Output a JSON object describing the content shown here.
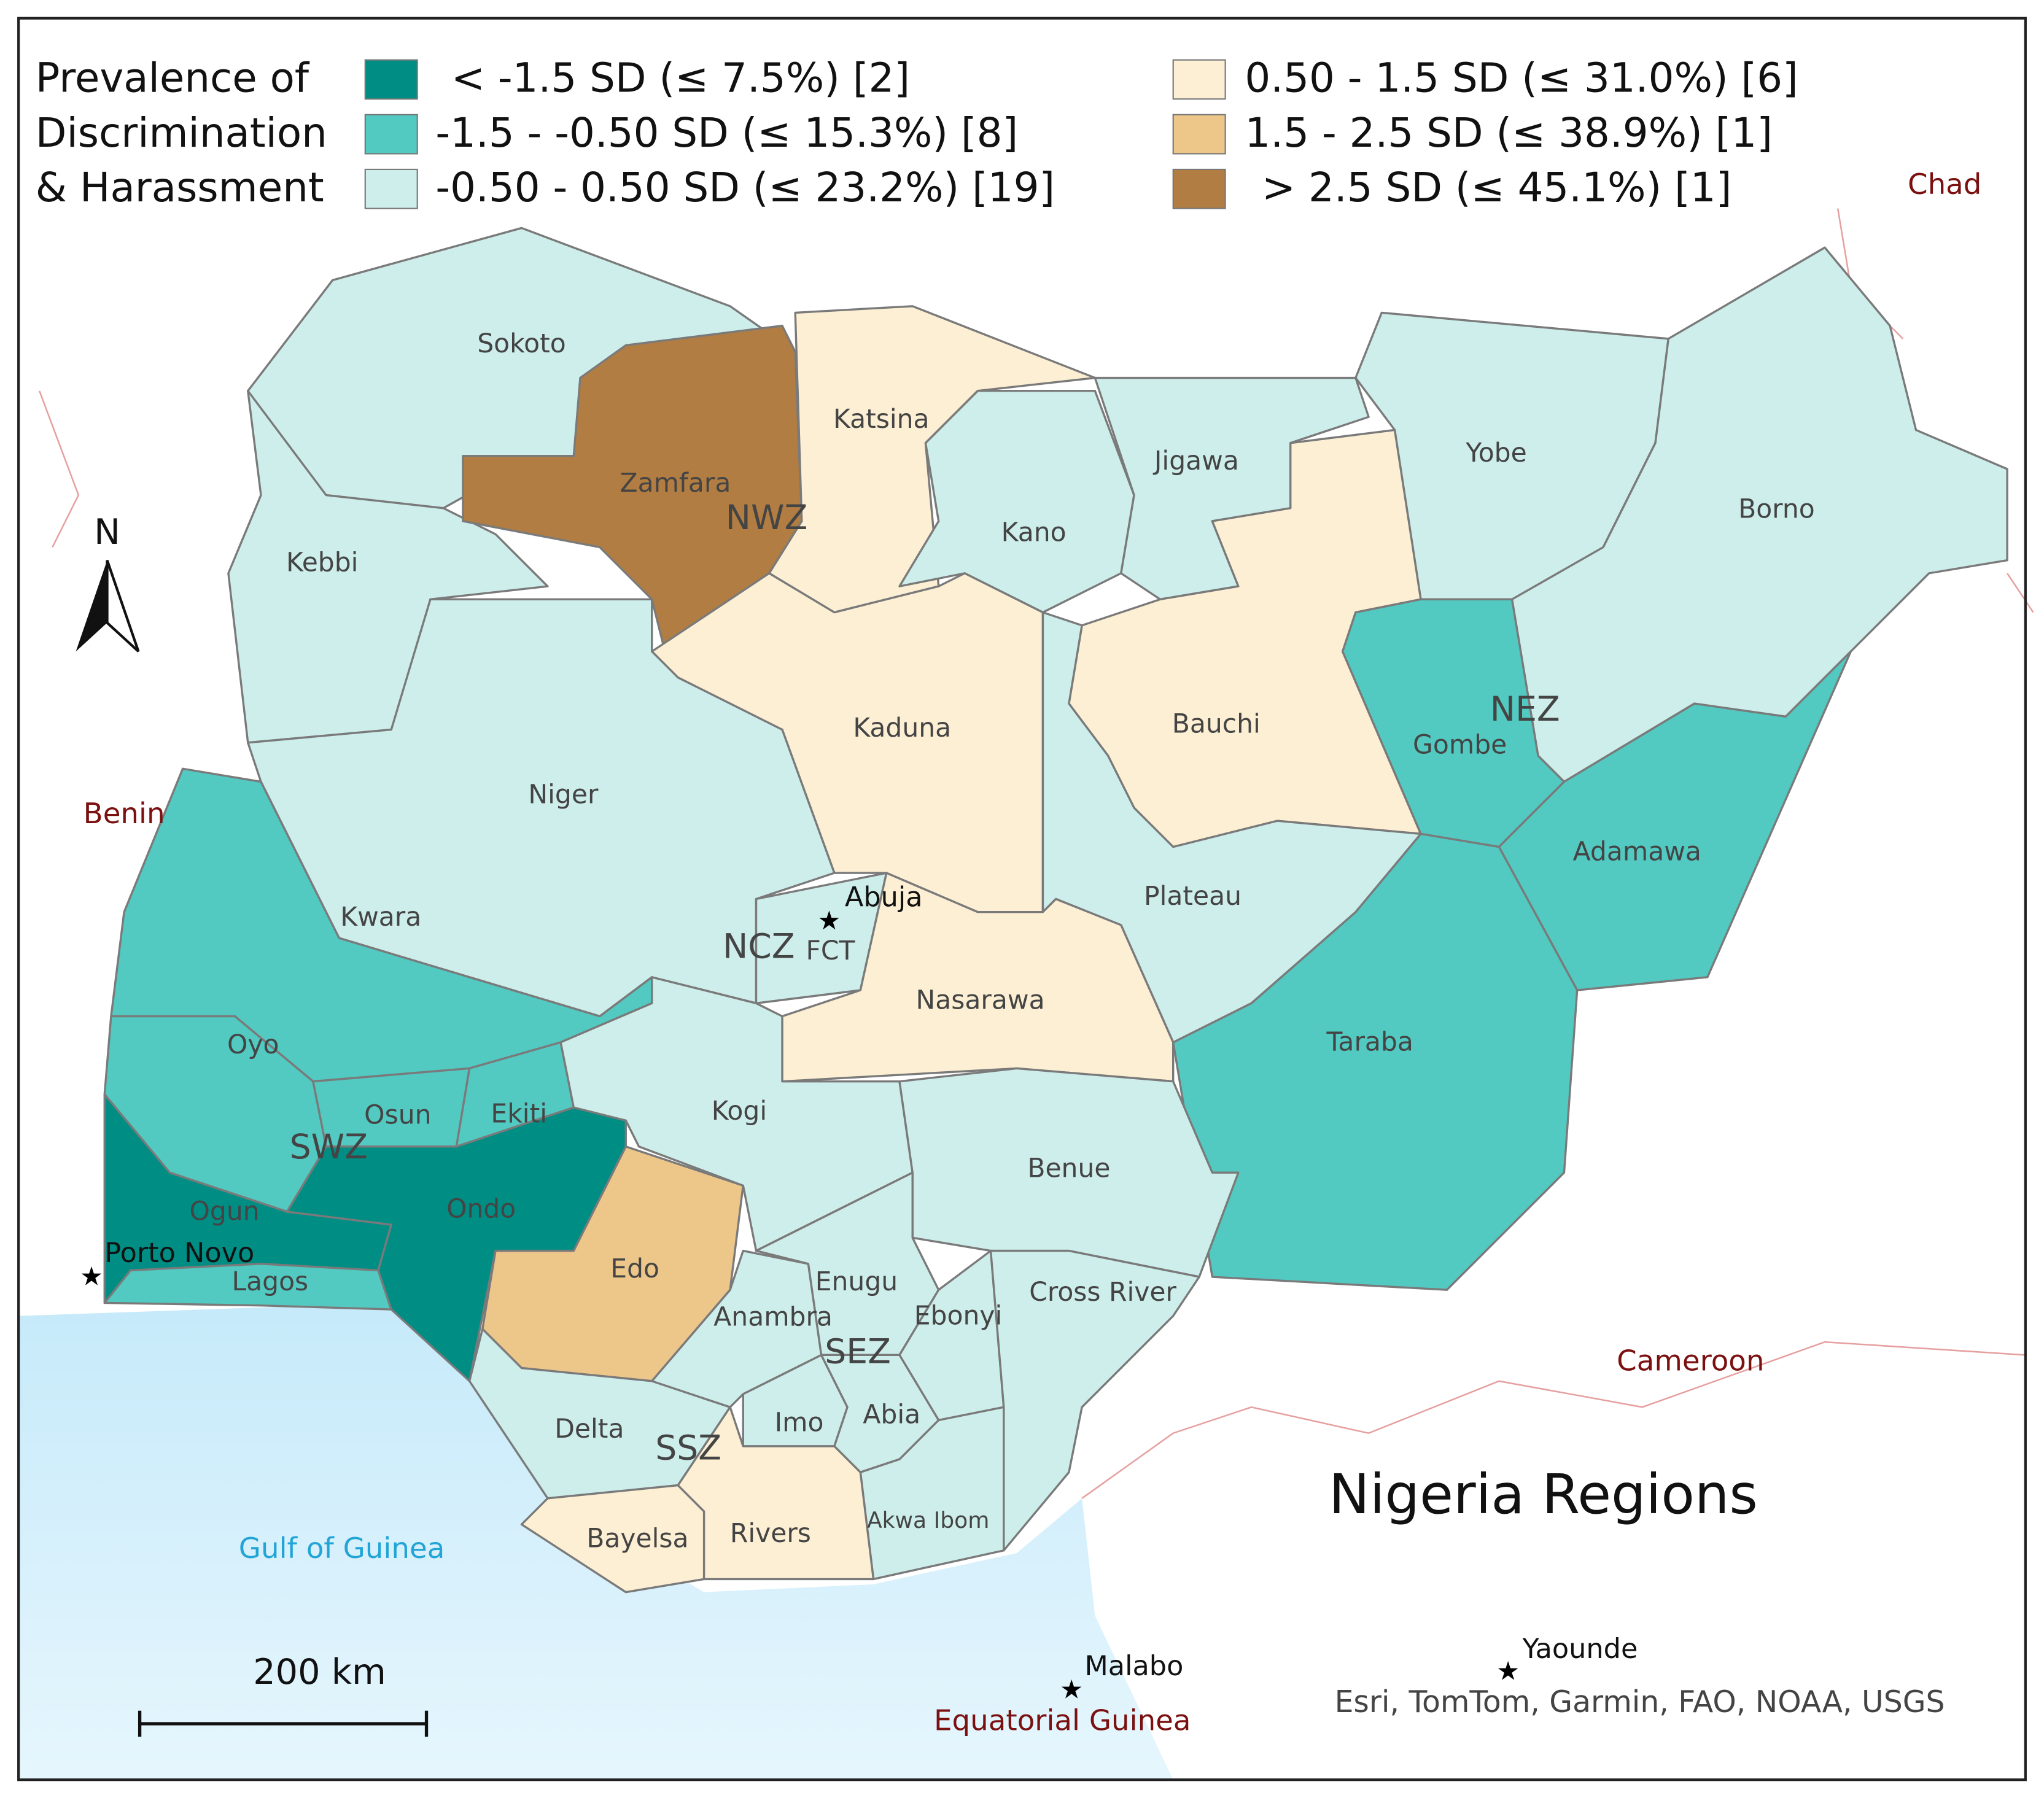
{
  "title": "Nigeria Regions",
  "legend": {
    "title": [
      "Prevalence of",
      "Discrimination",
      "& Harassment"
    ],
    "items": [
      {
        "label": "< -1.5 SD (≤ 7.5%) [2]",
        "color": "#008d84"
      },
      {
        "label": "-1.5 - -0.50 SD (≤ 15.3%) [8]",
        "color": "#52c9c1"
      },
      {
        "label": "-0.50 - 0.50 SD (≤ 23.2%) [19]",
        "color": "#cdeeeb"
      },
      {
        "label": "0.50 - 1.5 SD (≤ 31.0%) [6]",
        "color": "#fcefd4"
      },
      {
        "label": "1.5 - 2.5 SD (≤ 38.9%) [1]",
        "color": "#edc68a"
      },
      {
        "label": "> 2.5 SD (≤ 45.1%) [1]",
        "color": "#b17d42"
      }
    ]
  },
  "states": [
    {
      "name": "Sokoto",
      "color": "#cdeeeb"
    },
    {
      "name": "Kebbi",
      "color": "#cdeeeb"
    },
    {
      "name": "Zamfara",
      "color": "#b17d42"
    },
    {
      "name": "Katsina",
      "color": "#fcefd4"
    },
    {
      "name": "Kano",
      "color": "#cdeeeb"
    },
    {
      "name": "Jigawa",
      "color": "#cdeeeb"
    },
    {
      "name": "Yobe",
      "color": "#cdeeeb"
    },
    {
      "name": "Borno",
      "color": "#cdeeeb"
    },
    {
      "name": "Bauchi",
      "color": "#fcefd4"
    },
    {
      "name": "Gombe",
      "color": "#52c9c1"
    },
    {
      "name": "Adamawa",
      "color": "#52c9c1"
    },
    {
      "name": "Taraba",
      "color": "#52c9c1"
    },
    {
      "name": "Kaduna",
      "color": "#fcefd4"
    },
    {
      "name": "Niger",
      "color": "#cdeeeb"
    },
    {
      "name": "FCT",
      "color": "#cdeeeb"
    },
    {
      "name": "Plateau",
      "color": "#cdeeeb"
    },
    {
      "name": "Nasarawa",
      "color": "#fcefd4"
    },
    {
      "name": "Kwara",
      "color": "#52c9c1"
    },
    {
      "name": "Oyo",
      "color": "#52c9c1"
    },
    {
      "name": "Osun",
      "color": "#52c9c1"
    },
    {
      "name": "Ekiti",
      "color": "#52c9c1"
    },
    {
      "name": "Ogun",
      "color": "#008d84"
    },
    {
      "name": "Lagos",
      "color": "#52c9c1"
    },
    {
      "name": "Ondo",
      "color": "#008d84"
    },
    {
      "name": "Kogi",
      "color": "#cdeeeb"
    },
    {
      "name": "Edo",
      "color": "#edc68a"
    },
    {
      "name": "Benue",
      "color": "#cdeeeb"
    },
    {
      "name": "Delta",
      "color": "#cdeeeb"
    },
    {
      "name": "Anambra",
      "color": "#cdeeeb"
    },
    {
      "name": "Enugu",
      "color": "#cdeeeb"
    },
    {
      "name": "Ebonyi",
      "color": "#cdeeeb"
    },
    {
      "name": "Cross River",
      "color": "#cdeeeb"
    },
    {
      "name": "Imo",
      "color": "#cdeeeb"
    },
    {
      "name": "Abia",
      "color": "#cdeeeb"
    },
    {
      "name": "Akwa Ibom",
      "color": "#cdeeeb"
    },
    {
      "name": "Bayelsa",
      "color": "#fcefd4"
    },
    {
      "name": "Rivers",
      "color": "#fcefd4"
    }
  ],
  "zones": [
    "NWZ",
    "NEZ",
    "NCZ",
    "SWZ",
    "SEZ",
    "SSZ"
  ],
  "countries": [
    "Chad",
    "Benin",
    "Cameroon",
    "Equatorial Guinea"
  ],
  "cities": [
    "Abuja",
    "Porto Novo",
    "Malabo",
    "Yaounde"
  ],
  "water": "Gulf of Guinea",
  "north": "N",
  "scale_bar": "200 km",
  "attribution": "Esri, TomTom, Garmin, FAO, NOAA, USGS"
}
